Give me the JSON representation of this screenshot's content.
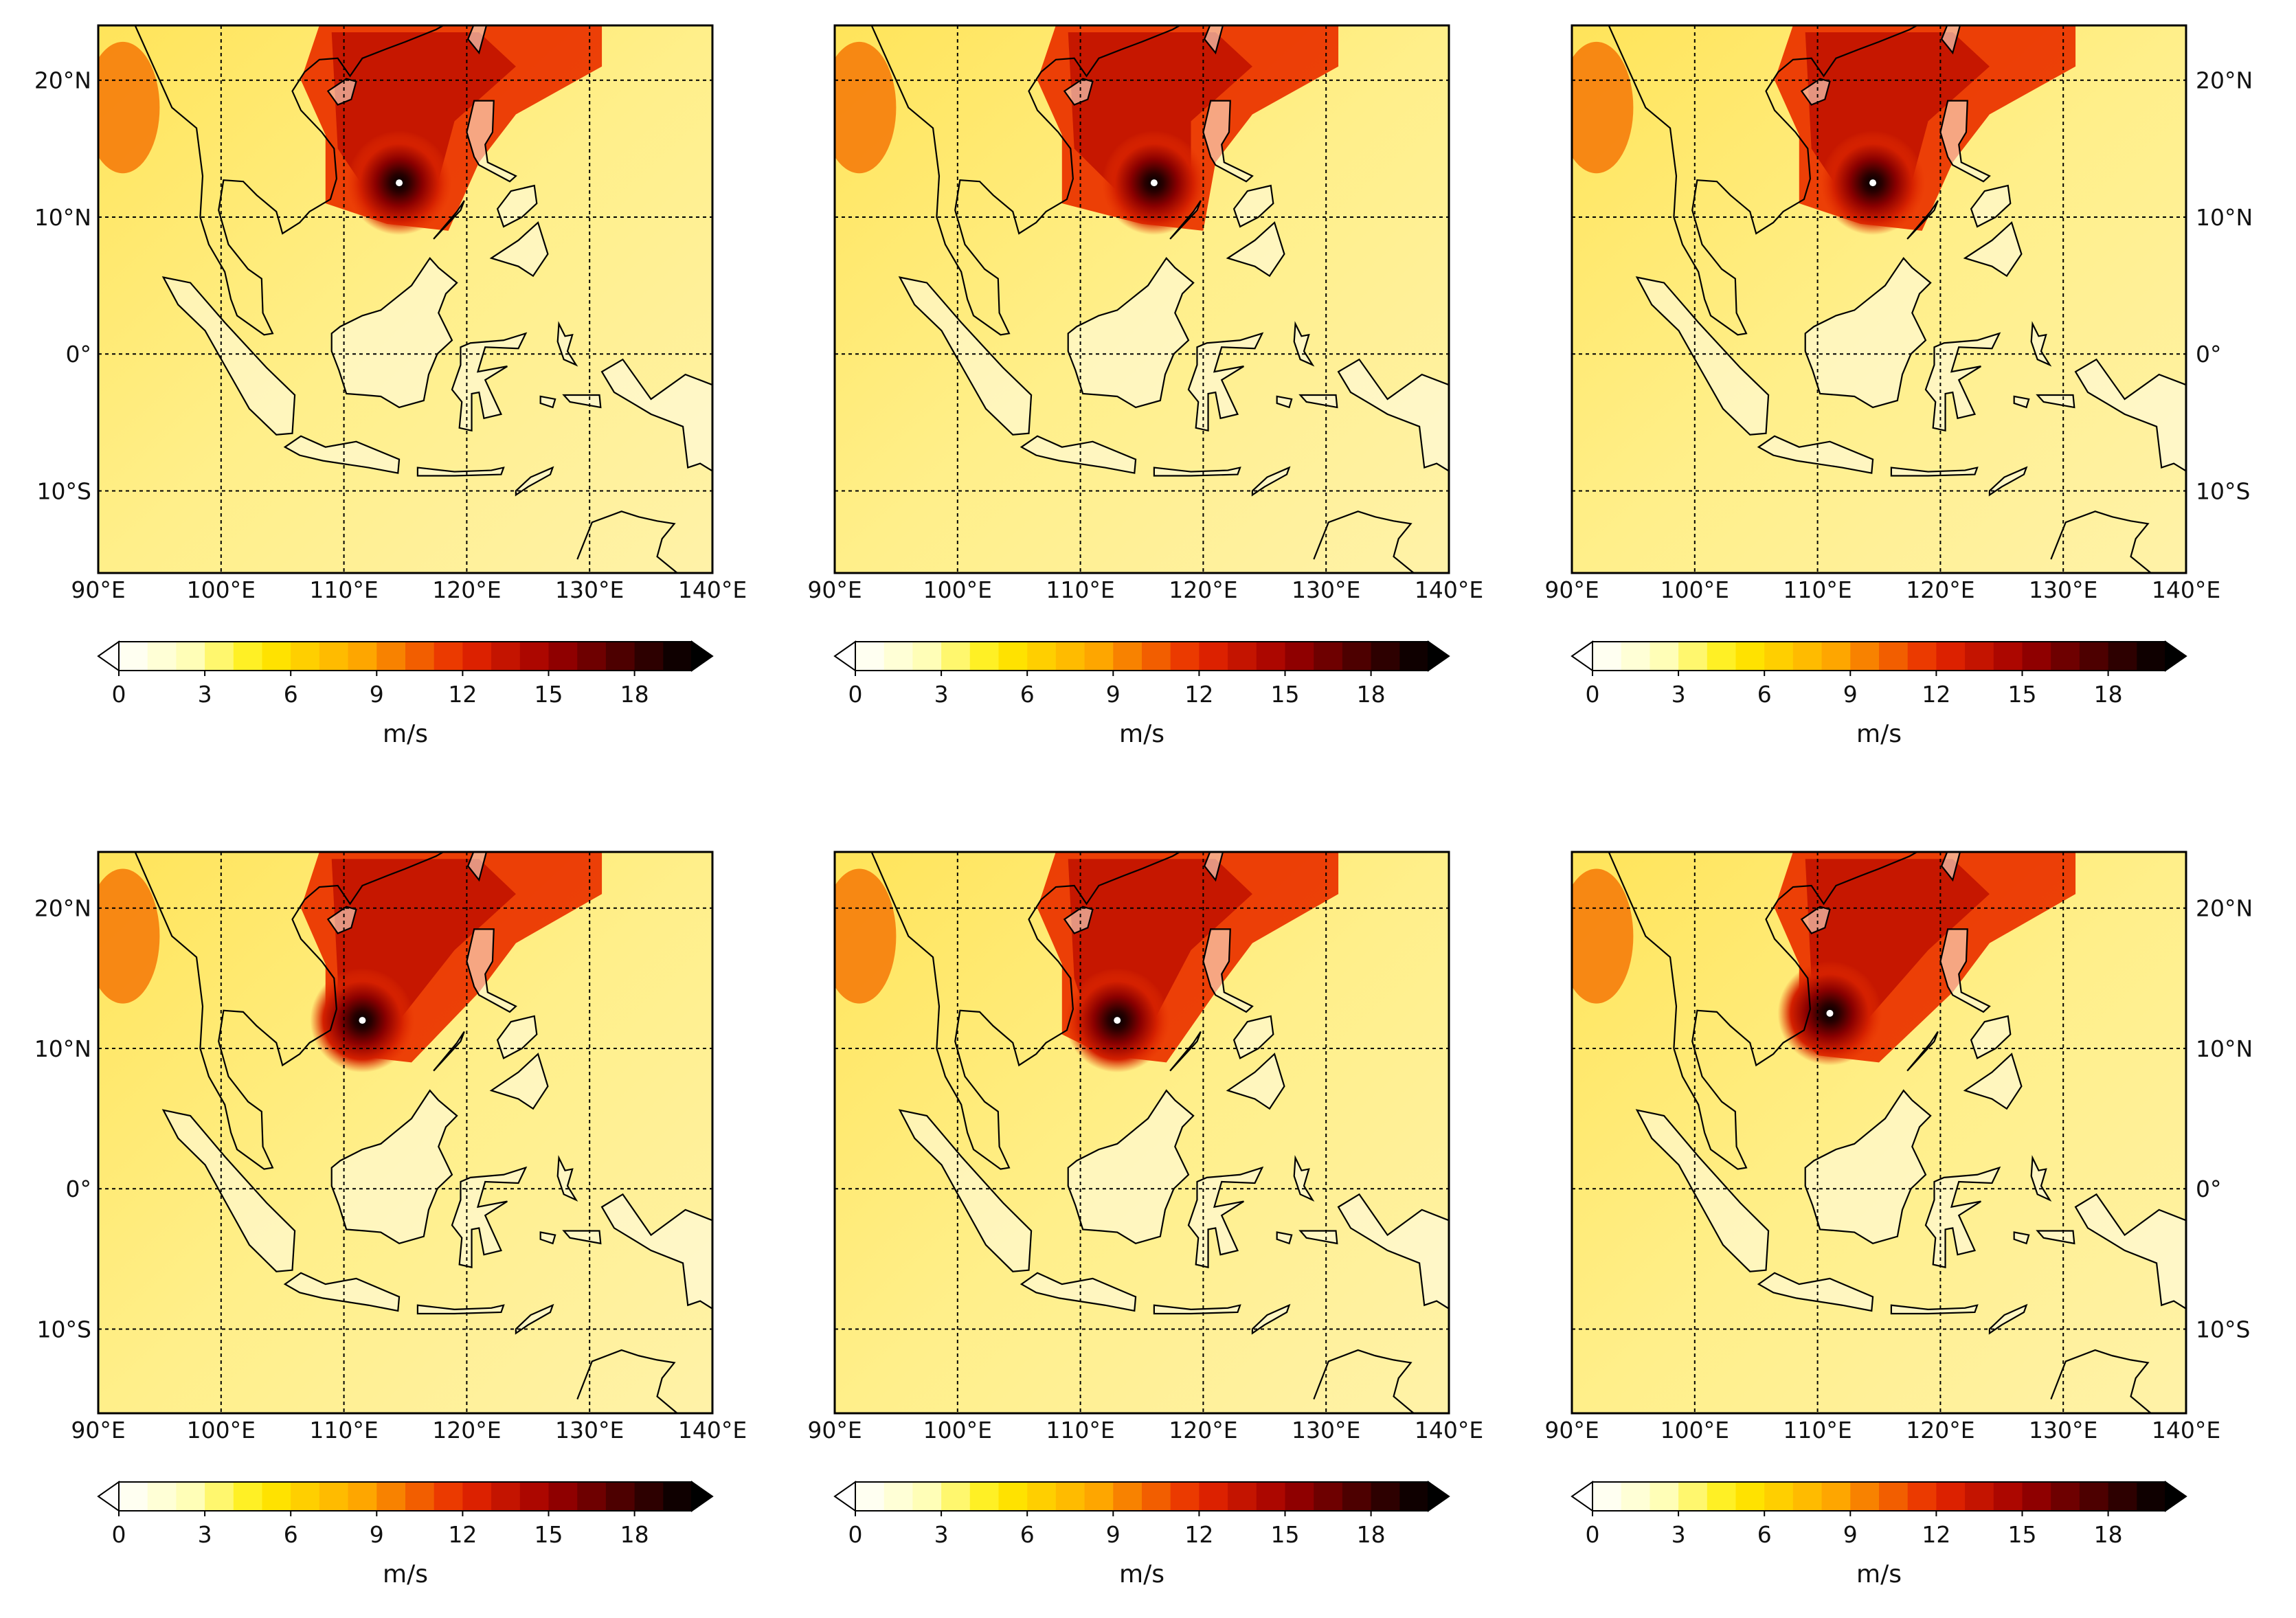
{
  "figure": {
    "colormap": {
      "type": "discrete-hot",
      "bins": 20,
      "range": [
        0,
        20
      ],
      "colors_low_to_high": [
        "#ffffff",
        "#ffffcc",
        "#ffeb00",
        "#ff9d00",
        "#e11b00",
        "#9c0000",
        "#3c0000",
        "#000000"
      ]
    },
    "map_extent": {
      "lon": [
        90,
        140
      ],
      "lat": [
        -16,
        24
      ]
    },
    "lon_gridlines": [
      90,
      100,
      110,
      120,
      130,
      140
    ],
    "lat_gridlines": [
      -10,
      0,
      10,
      20
    ],
    "lon_tick_labels": [
      "90°E",
      "100°E",
      "110°E",
      "120°E",
      "130°E",
      "140°E"
    ],
    "lat_tick_labels": [
      "20°N",
      "10°N",
      "0°",
      "10°S"
    ],
    "colorbar": {
      "ticks": [
        0,
        3,
        6,
        9,
        12,
        15,
        18
      ],
      "tick_labels": [
        "0",
        "3",
        "6",
        "9",
        "12",
        "15",
        "18"
      ],
      "extend": "both",
      "unit_label": "m/s"
    },
    "panels": [
      {
        "row": 1,
        "col": 1,
        "lat_labels_side": "left",
        "storm_center": {
          "lon": 114.5,
          "lat": 12.5
        }
      },
      {
        "row": 1,
        "col": 2,
        "lat_labels_side": "none",
        "storm_center": {
          "lon": 116.0,
          "lat": 12.5
        }
      },
      {
        "row": 1,
        "col": 3,
        "lat_labels_side": "right",
        "storm_center": {
          "lon": 114.5,
          "lat": 12.5
        }
      },
      {
        "row": 2,
        "col": 1,
        "lat_labels_side": "left",
        "storm_center": {
          "lon": 111.5,
          "lat": 12.0
        }
      },
      {
        "row": 2,
        "col": 2,
        "lat_labels_side": "none",
        "storm_center": {
          "lon": 113.0,
          "lat": 12.0
        }
      },
      {
        "row": 2,
        "col": 3,
        "lat_labels_side": "right",
        "storm_center": {
          "lon": 111.0,
          "lat": 12.5
        }
      }
    ]
  }
}
